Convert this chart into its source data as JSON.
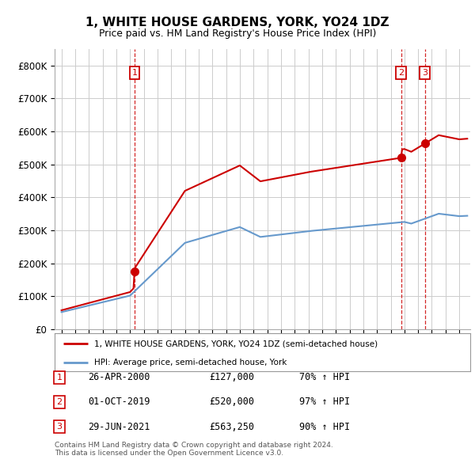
{
  "title": "1, WHITE HOUSE GARDENS, YORK, YO24 1DZ",
  "subtitle": "Price paid vs. HM Land Registry's House Price Index (HPI)",
  "property_label": "1, WHITE HOUSE GARDENS, YORK, YO24 1DZ (semi-detached house)",
  "hpi_label": "HPI: Average price, semi-detached house, York",
  "footer": "Contains HM Land Registry data © Crown copyright and database right 2024.\nThis data is licensed under the Open Government Licence v3.0.",
  "sales": [
    {
      "num": 1,
      "date": "26-APR-2000",
      "price": 127000,
      "hpi_pct": "70% ↑ HPI",
      "x": 2000.32
    },
    {
      "num": 2,
      "date": "01-OCT-2019",
      "price": 520000,
      "hpi_pct": "97% ↑ HPI",
      "x": 2019.75
    },
    {
      "num": 3,
      "date": "29-JUN-2021",
      "price": 563250,
      "hpi_pct": "90% ↑ HPI",
      "x": 2021.49
    }
  ],
  "property_color": "#cc0000",
  "hpi_color": "#6699cc",
  "vline_color": "#cc0000",
  "grid_color": "#cccccc",
  "background_color": "#ffffff",
  "ylim": [
    0,
    850000
  ],
  "xlim": [
    1994.5,
    2024.8
  ],
  "yticks": [
    0,
    100000,
    200000,
    300000,
    400000,
    500000,
    600000,
    700000,
    800000
  ],
  "ytick_labels": [
    "£0",
    "£100K",
    "£200K",
    "£300K",
    "£400K",
    "£500K",
    "£600K",
    "£700K",
    "£800K"
  ],
  "xticks": [
    1995,
    1996,
    1997,
    1998,
    1999,
    2000,
    2001,
    2002,
    2003,
    2004,
    2005,
    2006,
    2007,
    2008,
    2009,
    2010,
    2011,
    2012,
    2013,
    2014,
    2015,
    2016,
    2017,
    2018,
    2019,
    2020,
    2021,
    2022,
    2023,
    2024
  ]
}
